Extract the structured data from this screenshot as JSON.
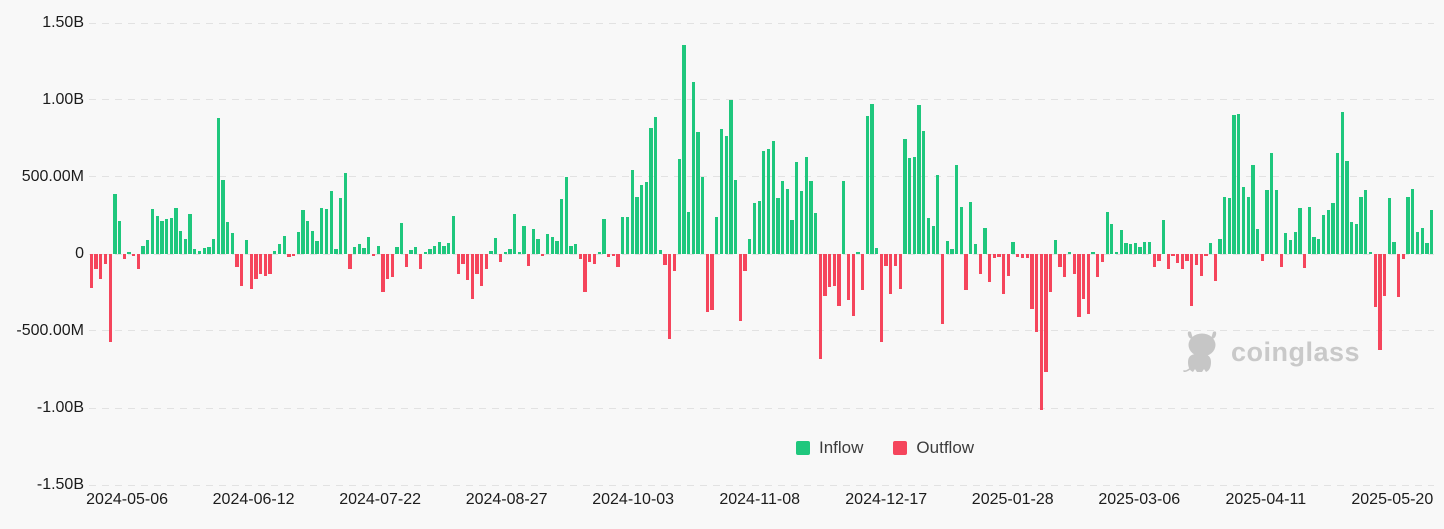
{
  "watermark": {
    "text": "coinglass"
  },
  "chart_data": {
    "type": "bar",
    "title": "",
    "y_axis": {
      "tick_labels": [
        "1.50B",
        "1.00B",
        "500.00M",
        "0",
        "-500.00M",
        "-1.00B",
        "-1.50B"
      ],
      "max_millions": 1500,
      "min_millions": -1500,
      "grid": "dashed horizontal"
    },
    "x_axis": {
      "tick_labels": [
        "2024-05-06",
        "2024-06-12",
        "2024-07-22",
        "2024-08-27",
        "2024-10-03",
        "2024-11-08",
        "2024-12-17",
        "2025-01-28",
        "2025-03-06",
        "2025-04-11",
        "2025-05-20"
      ]
    },
    "legend": [
      {
        "label": "Inflow",
        "color": "#1FC77D"
      },
      {
        "label": "Outflow",
        "color": "#F5455C"
      }
    ],
    "colors": {
      "inflow": "#1FC77D",
      "outflow": "#F5455C"
    },
    "values_millions": [
      -220,
      -95,
      -160,
      -65,
      -570,
      390,
      215,
      -30,
      15,
      -15,
      -95,
      55,
      90,
      290,
      250,
      215,
      225,
      235,
      300,
      150,
      95,
      260,
      30,
      20,
      40,
      45,
      95,
      885,
      480,
      210,
      135,
      -85,
      -205,
      90,
      -225,
      -160,
      -130,
      -140,
      -130,
      20,
      65,
      120,
      -20,
      -15,
      140,
      285,
      215,
      150,
      85,
      300,
      290,
      410,
      30,
      365,
      525,
      -95,
      45,
      65,
      40,
      110,
      -15,
      55,
      -250,
      -160,
      -150,
      45,
      200,
      -85,
      25,
      45,
      -95,
      15,
      30,
      55,
      80,
      55,
      70,
      250,
      -130,
      -65,
      -170,
      -290,
      -130,
      -205,
      -95,
      20,
      105,
      -55,
      15,
      30,
      260,
      10,
      185,
      -75,
      160,
      95,
      -10,
      130,
      110,
      85,
      355,
      500,
      55,
      65,
      -30,
      -250,
      -55,
      -65,
      15,
      225,
      -20,
      -15,
      -85,
      240,
      240,
      545,
      370,
      450,
      465,
      820,
      890,
      25,
      -70,
      -550,
      -110,
      615,
      1360,
      270,
      1120,
      795,
      500,
      -375,
      -365,
      240,
      810,
      765,
      1000,
      480,
      -435,
      -110,
      95,
      330,
      345,
      670,
      680,
      735,
      365,
      475,
      420,
      220,
      595,
      410,
      630,
      475,
      265,
      -680,
      -270,
      -215,
      -205,
      -335,
      475,
      -300,
      -400,
      10,
      -235,
      895,
      975,
      40,
      -570,
      -75,
      -260,
      -75,
      -225,
      750,
      625,
      630,
      965,
      800,
      235,
      185,
      515,
      -455,
      85,
      30,
      580,
      305,
      -235,
      335,
      65,
      -130,
      170,
      -185,
      -25,
      -20,
      -260,
      -145,
      75,
      -20,
      -25,
      -25,
      -360,
      -505,
      -1010,
      -765,
      -250,
      90,
      -85,
      -150,
      15,
      -130,
      -410,
      -290,
      -390,
      15,
      -150,
      -55,
      270,
      195,
      10,
      155,
      70,
      65,
      70,
      45,
      75,
      80,
      -85,
      -45,
      220,
      -95,
      -15,
      -60,
      -95,
      -45,
      -335,
      -70,
      -140,
      -10,
      70,
      -175,
      95,
      370,
      365,
      905,
      910,
      435,
      370,
      580,
      160,
      -45,
      415,
      655,
      415,
      -85,
      135,
      90,
      145,
      300,
      -90,
      305,
      110,
      95,
      255,
      285,
      330,
      655,
      925,
      605,
      205,
      195,
      370,
      415,
      15,
      -345,
      -625,
      -270,
      365,
      75,
      -280,
      -30,
      370,
      425,
      140,
      170,
      70,
      285
    ]
  }
}
